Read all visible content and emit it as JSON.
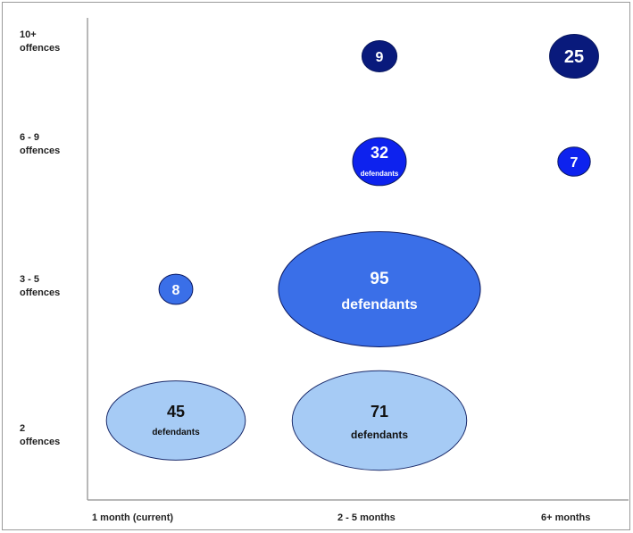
{
  "chart_data": {
    "type": "bubble",
    "title": "",
    "xlabel": "",
    "ylabel": "",
    "x_categories": [
      "1 month (current)",
      "2 - 5 months",
      "6+ months"
    ],
    "y_categories": [
      {
        "line1": "2",
        "line2": "offences"
      },
      {
        "line1": "3 - 5",
        "line2": "offences"
      },
      {
        "line1": "6 - 9",
        "line2": "offences"
      },
      {
        "line1": "10+",
        "line2": "offences"
      }
    ],
    "bubble_word": "defendants",
    "colors": {
      "2 offences": "#a6cbf5",
      "3 - 5 offences": "#3a6fe8",
      "6 - 9 offences": "#0d22ee",
      "10+ offences": "#091a7c",
      "light_text": "#111111",
      "dark_text": "#ffffff"
    },
    "points": [
      {
        "x": "1 month (current)",
        "y": "2 offences",
        "value": 45,
        "show_word": true
      },
      {
        "x": "2 - 5 months",
        "y": "2 offences",
        "value": 71,
        "show_word": true
      },
      {
        "x": "1 month (current)",
        "y": "3 - 5 offences",
        "value": 8,
        "show_word": false
      },
      {
        "x": "2 - 5 months",
        "y": "3 - 5 offences",
        "value": 95,
        "show_word": true
      },
      {
        "x": "2 - 5 months",
        "y": "6 - 9 offences",
        "value": 32,
        "show_word": true
      },
      {
        "x": "6+ months",
        "y": "6 - 9 offences",
        "value": 7,
        "show_word": false
      },
      {
        "x": "2 - 5 months",
        "y": "10+ offences",
        "value": 9,
        "show_word": false
      },
      {
        "x": "6+ months",
        "y": "10+ offences",
        "value": 25,
        "show_word": false
      }
    ]
  }
}
